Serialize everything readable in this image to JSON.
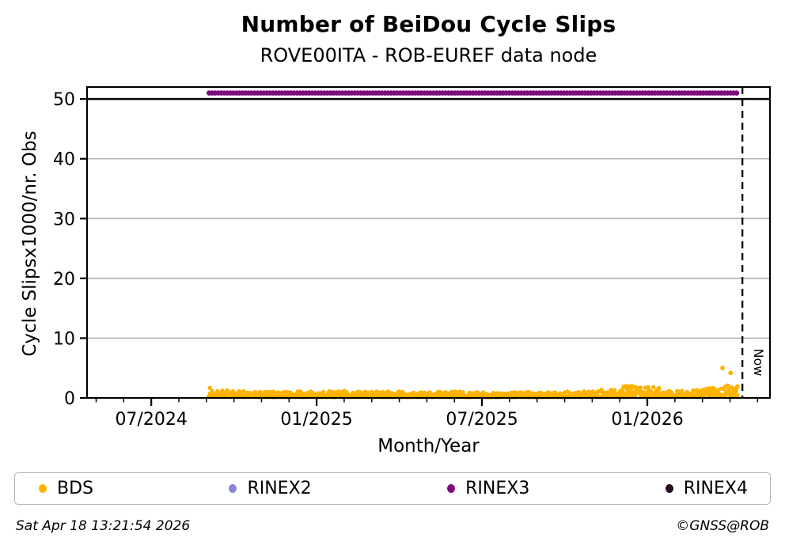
{
  "header": {
    "title": "Number of BeiDou Cycle Slips",
    "subtitle": "ROVE00ITA - ROB-EUREF data node"
  },
  "footer": {
    "timestamp": "Sat Apr 18 13:21:54 2026",
    "credit": "©GNSS@ROB"
  },
  "chart_data": {
    "type": "scatter",
    "title": "Number of BeiDou Cycle Slips",
    "subtitle": "ROVE00ITA - ROB-EUREF data node",
    "xlabel": "Month/Year",
    "ylabel": "Cycle Slipsx1000/nr. Obs",
    "ylim": [
      0,
      52
    ],
    "yticks": [
      0,
      10,
      20,
      30,
      40,
      50
    ],
    "x_range_months": [
      3.67,
      28.45
    ],
    "x_epoch": "months since 2024-01-01",
    "xticks": [
      {
        "label": "07/2024",
        "t": 6
      },
      {
        "label": "01/2025",
        "t": 12
      },
      {
        "label": "07/2025",
        "t": 18
      },
      {
        "label": "01/2026",
        "t": 24
      }
    ],
    "minor_tick_every_months": 1,
    "grid": {
      "horizontal": true,
      "vertical": false,
      "color": "#b3b3b3"
    },
    "hline": {
      "y": 50,
      "color": "#000000"
    },
    "now_marker": {
      "label": "Now",
      "t": 27.45,
      "style": "dashed"
    },
    "legend_position": "bottom",
    "series": [
      {
        "name": "BDS",
        "color": "#FFB300",
        "marker": "dot",
        "kind": "scatter-band",
        "t_start": 8.1,
        "t_end": 27.3,
        "band_profile": [
          [
            8.1,
            0.8
          ],
          [
            8.5,
            0.65
          ],
          [
            9,
            0.55
          ],
          [
            10,
            0.5
          ],
          [
            11,
            0.5
          ],
          [
            12,
            0.5
          ],
          [
            13,
            0.55
          ],
          [
            14,
            0.5
          ],
          [
            15,
            0.5
          ],
          [
            16,
            0.45
          ],
          [
            17,
            0.5
          ],
          [
            18,
            0.45
          ],
          [
            19,
            0.5
          ],
          [
            20,
            0.45
          ],
          [
            21,
            0.5
          ],
          [
            22,
            0.55
          ],
          [
            22.8,
            0.75
          ],
          [
            23.3,
            0.95
          ],
          [
            23.8,
            0.9
          ],
          [
            24.3,
            0.85
          ],
          [
            24.8,
            0.65
          ],
          [
            25.3,
            0.6
          ],
          [
            25.8,
            0.7
          ],
          [
            26.3,
            0.75
          ],
          [
            26.8,
            0.95
          ],
          [
            27.3,
            1.1
          ]
        ],
        "outliers": [
          [
            23.2,
            1.9
          ],
          [
            26.73,
            5.0
          ],
          [
            27.02,
            4.2
          ]
        ]
      },
      {
        "name": "RINEX2",
        "color": "#8787CF",
        "marker": "dot",
        "kind": "none-visible"
      },
      {
        "name": "RINEX3",
        "color": "#7D0C7D",
        "marker": "dot",
        "kind": "dotted-line",
        "value": 51,
        "t_start": 8.1,
        "t_end": 27.25
      },
      {
        "name": "RINEX4",
        "color": "#2D0B22",
        "marker": "dot",
        "kind": "none-visible"
      }
    ]
  }
}
